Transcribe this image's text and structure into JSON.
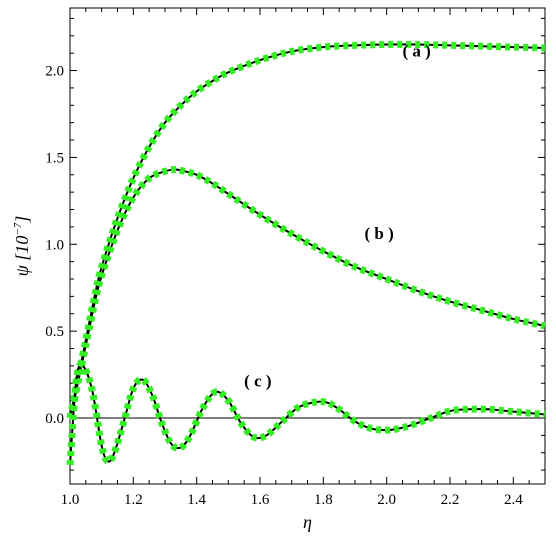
{
  "chart_data": {
    "type": "line",
    "xlabel": "η",
    "ylabel": "ψ [10",
    "ylabel_exponent": "−7",
    "ylabel_close": "]",
    "xlim": [
      1.0,
      2.5
    ],
    "ylim": [
      -0.38,
      2.36
    ],
    "x_ticks": [
      "1.0",
      "1.2",
      "1.4",
      "1.6",
      "1.8",
      "2.0",
      "2.2",
      "2.4"
    ],
    "y_ticks": [
      "0.0",
      "0.5",
      "1.0",
      "1.5",
      "2.0"
    ],
    "zero_line": true,
    "grid": false,
    "series_style": {
      "solid_color": "#000000",
      "dotted_color": "#33ee22"
    },
    "series": [
      {
        "label": "( a )",
        "x": [
          1.0,
          1.02,
          1.05,
          1.08,
          1.1,
          1.15,
          1.2,
          1.25,
          1.3,
          1.35,
          1.4,
          1.45,
          1.5,
          1.6,
          1.7,
          1.8,
          1.9,
          2.0,
          2.1,
          2.2,
          2.3,
          2.4,
          2.5
        ],
        "y": [
          0.0,
          0.18,
          0.45,
          0.72,
          0.87,
          1.15,
          1.38,
          1.56,
          1.7,
          1.8,
          1.88,
          1.94,
          1.99,
          2.06,
          2.11,
          2.135,
          2.145,
          2.15,
          2.15,
          2.145,
          2.14,
          2.135,
          2.13
        ]
      },
      {
        "label": "( b )",
        "x": [
          1.0,
          1.02,
          1.05,
          1.08,
          1.1,
          1.15,
          1.2,
          1.25,
          1.3,
          1.33,
          1.35,
          1.4,
          1.45,
          1.5,
          1.6,
          1.7,
          1.8,
          1.9,
          2.0,
          2.1,
          2.2,
          2.3,
          2.4,
          2.5
        ],
        "y": [
          0.0,
          0.16,
          0.42,
          0.68,
          0.82,
          1.08,
          1.27,
          1.38,
          1.42,
          1.43,
          1.425,
          1.4,
          1.35,
          1.29,
          1.17,
          1.06,
          0.96,
          0.87,
          0.8,
          0.73,
          0.67,
          0.62,
          0.57,
          0.53
        ]
      },
      {
        "label": "( c )",
        "x": [
          1.0,
          1.02,
          1.04,
          1.07,
          1.1,
          1.12,
          1.14,
          1.17,
          1.2,
          1.23,
          1.26,
          1.29,
          1.32,
          1.35,
          1.38,
          1.42,
          1.46,
          1.5,
          1.54,
          1.58,
          1.62,
          1.67,
          1.72,
          1.77,
          1.81,
          1.85,
          1.9,
          1.95,
          2.0,
          2.04,
          2.08,
          2.14,
          2.2,
          2.26,
          2.32,
          2.38,
          2.44,
          2.5
        ],
        "y": [
          -0.27,
          0.22,
          0.3,
          0.16,
          -0.16,
          -0.25,
          -0.2,
          -0.02,
          0.17,
          0.22,
          0.13,
          -0.03,
          -0.15,
          -0.17,
          -0.1,
          0.06,
          0.15,
          0.1,
          -0.03,
          -0.11,
          -0.1,
          -0.02,
          0.06,
          0.09,
          0.09,
          0.05,
          -0.02,
          -0.06,
          -0.07,
          -0.06,
          -0.04,
          0.0,
          0.04,
          0.05,
          0.05,
          0.04,
          0.03,
          0.02
        ]
      }
    ]
  }
}
